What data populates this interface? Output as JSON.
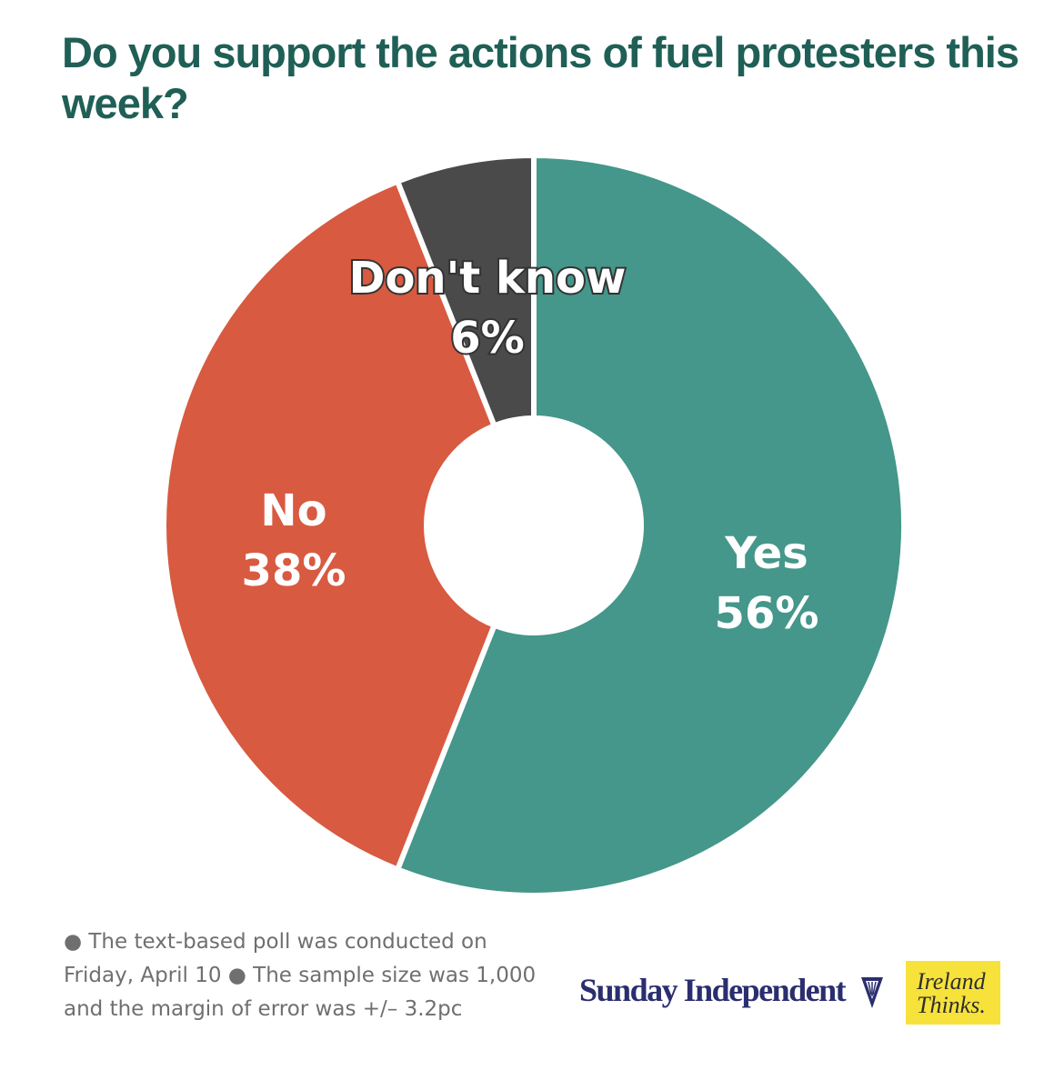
{
  "title": "Do you support the actions of fuel protesters this week?",
  "chart_data": {
    "type": "pie",
    "title": "Do you support the actions of fuel protesters this week?",
    "donut": true,
    "slices": [
      {
        "label": "Yes",
        "value": 56,
        "value_label": "56%",
        "color": "#44978a"
      },
      {
        "label": "No",
        "value": 38,
        "value_label": "38%",
        "color": "#d85a40"
      },
      {
        "label": "Don't know",
        "value": 6,
        "value_label": "6%",
        "color": "#4a4a4a"
      }
    ]
  },
  "footnote": "● The text-based poll was conducted on Friday, April 10 ● The sample size was 1,000 and the margin of error was +/– 3.2pc",
  "brand": {
    "publisher": "Sunday Independent",
    "partner_line1": "Ireland",
    "partner_line2": "Thinks."
  }
}
